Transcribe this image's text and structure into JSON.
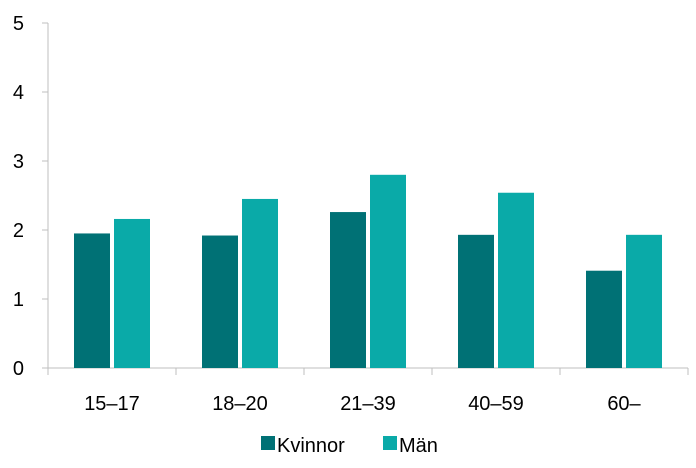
{
  "chart_data": {
    "type": "bar",
    "categories": [
      "15–17",
      "18–20",
      "21–39",
      "40–59",
      "60–"
    ],
    "series": [
      {
        "name": "Kvinnor",
        "values": [
          1.95,
          1.92,
          2.26,
          1.93,
          1.41
        ]
      },
      {
        "name": "Män",
        "values": [
          2.16,
          2.45,
          2.8,
          2.54,
          1.93
        ]
      }
    ],
    "ylim": [
      0,
      5
    ],
    "yticks": [
      0,
      1,
      2,
      3,
      4,
      5
    ],
    "grid": false,
    "legend_position": "bottom"
  },
  "colors": {
    "Kvinnor": "#007175",
    "Män": "#0aaaa8",
    "axis": "#bfbfbf"
  }
}
